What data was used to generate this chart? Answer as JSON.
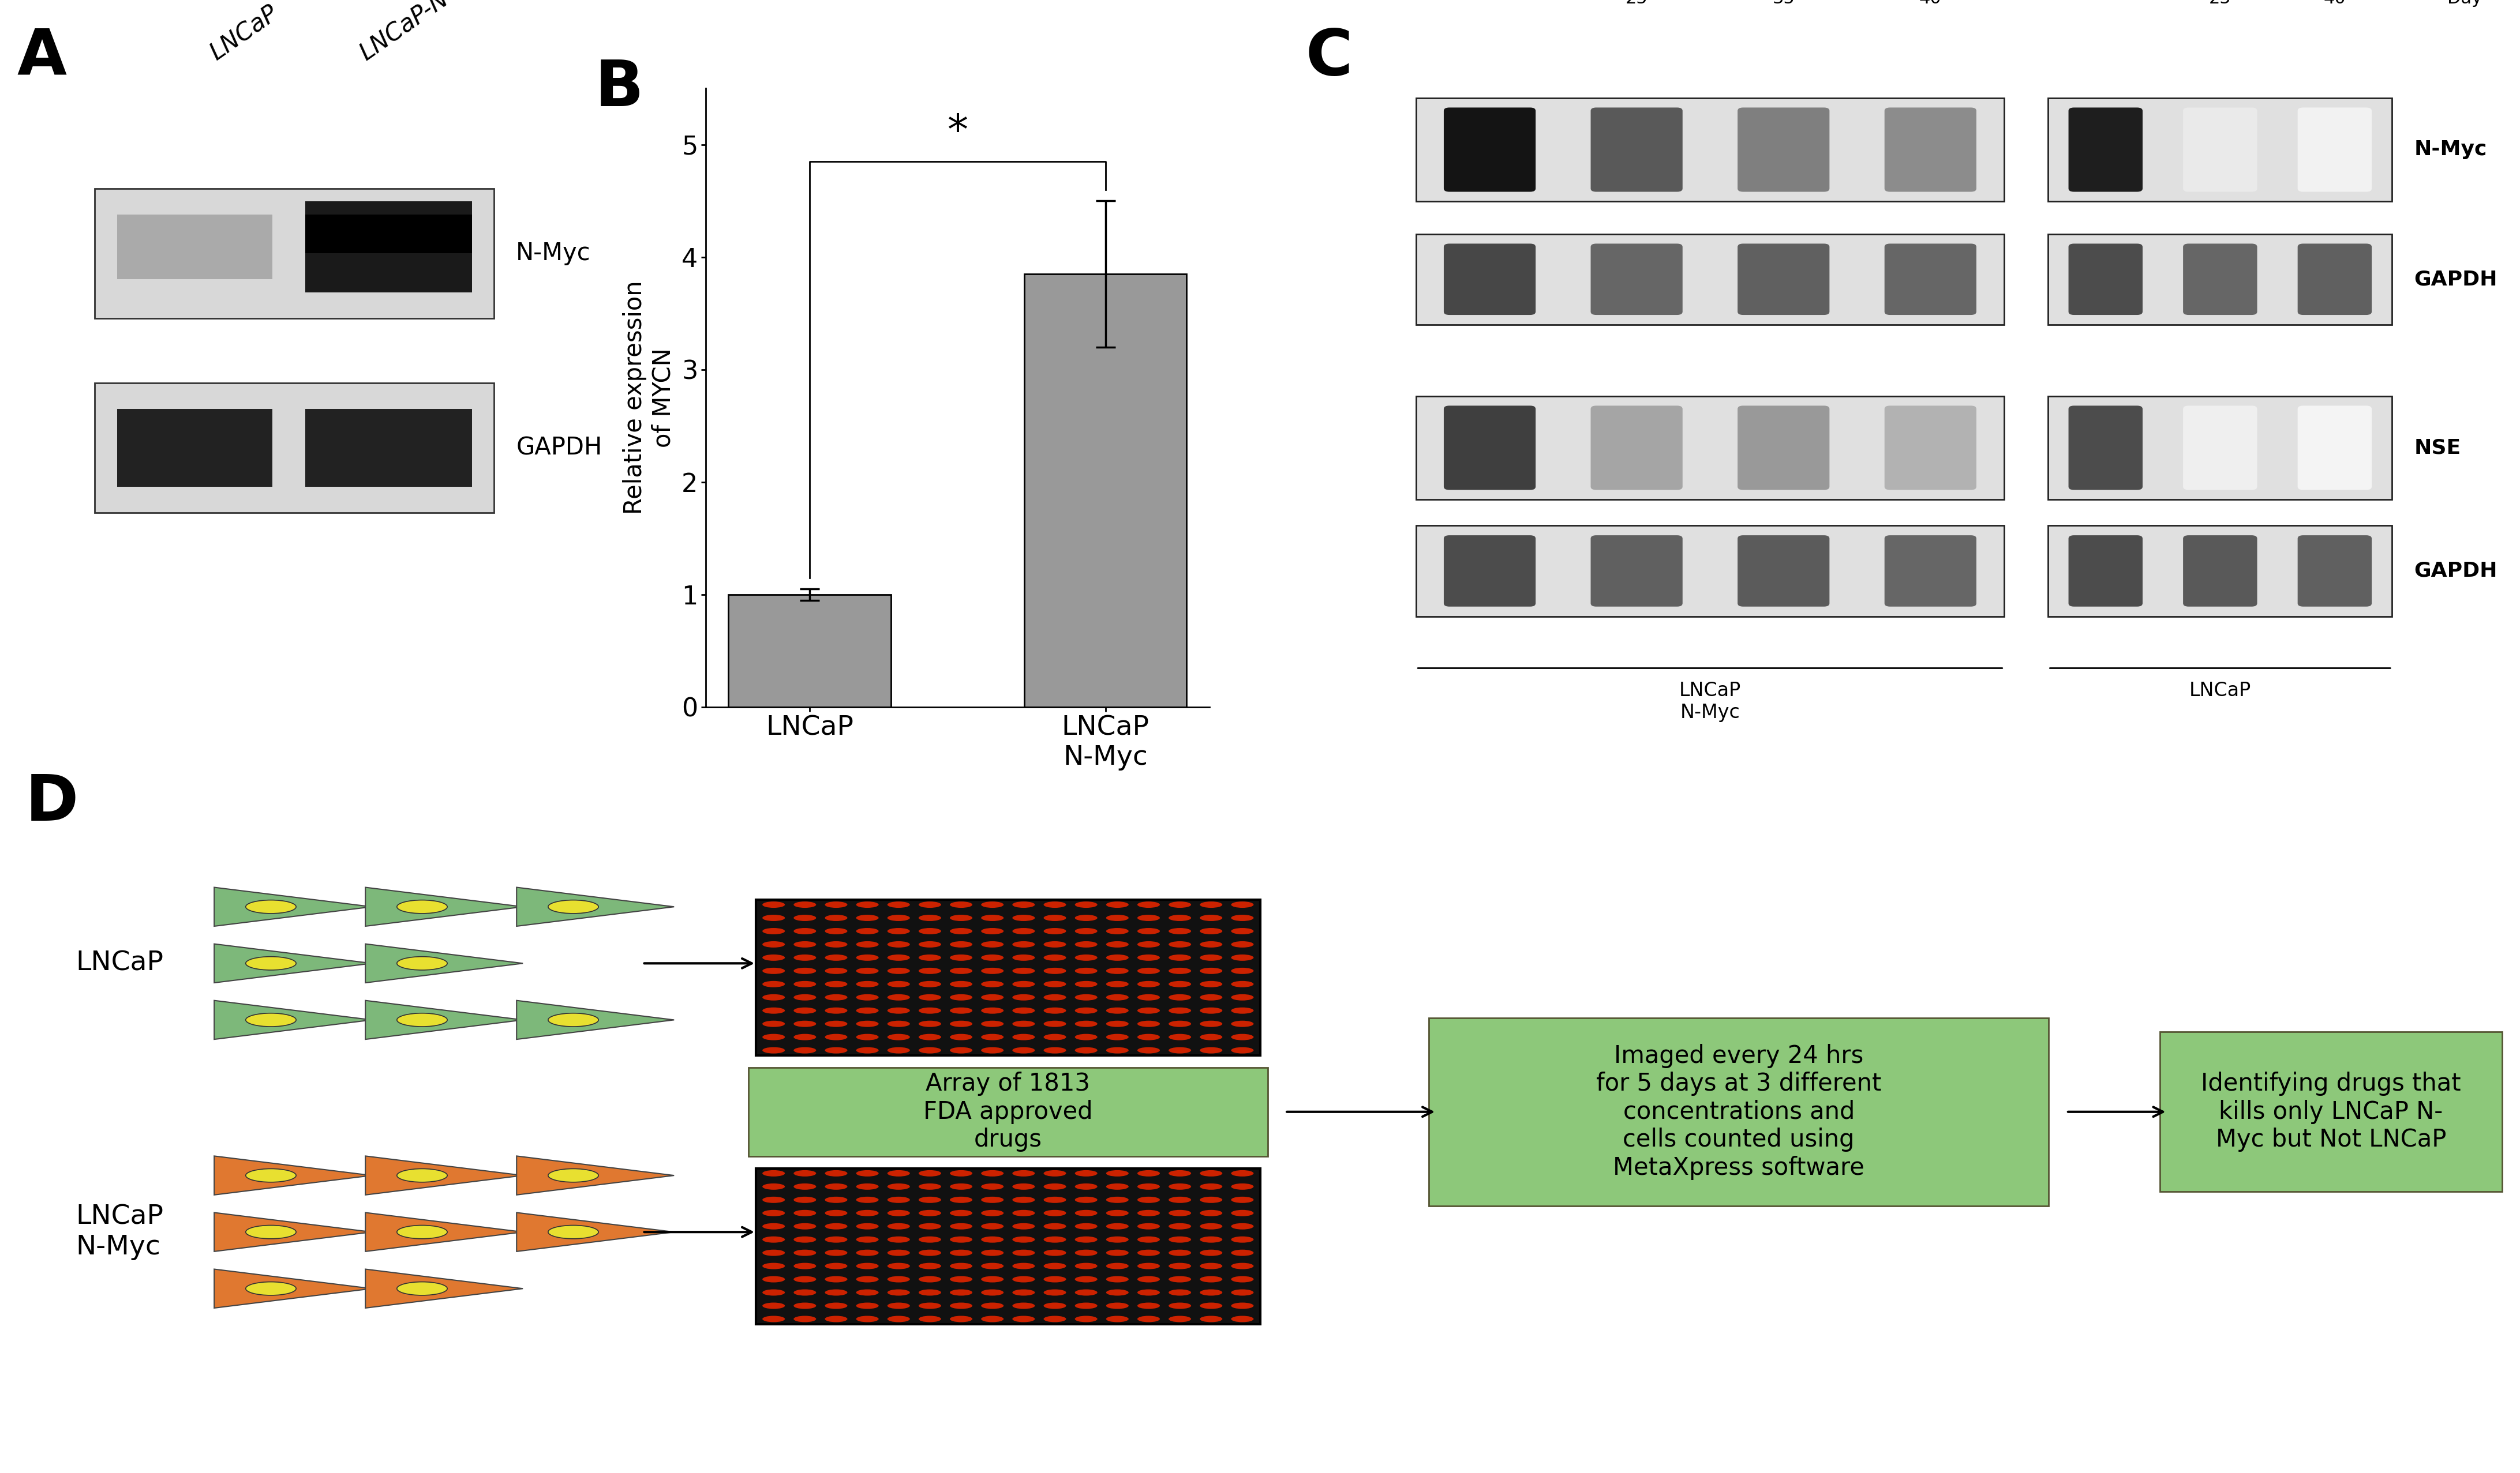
{
  "panel_B": {
    "categories": [
      "LNCaP",
      "LNCaP\nN-Myc"
    ],
    "values": [
      1.0,
      3.85
    ],
    "errors": [
      0.05,
      0.65
    ],
    "bar_color": "#999999",
    "ylabel": "Relative expression\nof MYCN",
    "yticks": [
      0,
      1,
      2,
      3,
      4,
      5
    ],
    "ylim": [
      0,
      5.5
    ]
  },
  "colors": {
    "background": "#ffffff",
    "green_box": "#8dc87a",
    "cell_green_body": "#7db87a",
    "cell_orange_body": "#e07830",
    "cell_nucleus": "#e8e030"
  },
  "D_text1": "Array of 1813\nFDA approved\ndrugs",
  "D_text2": "Imaged every 24 hrs\nfor 5 days at 3 different\nconcentrations and\ncells counted using\nMetaXpress software",
  "D_text3": "Identifying drugs that\nkills only LNCaP N-\nMyc but Not LNCaP"
}
